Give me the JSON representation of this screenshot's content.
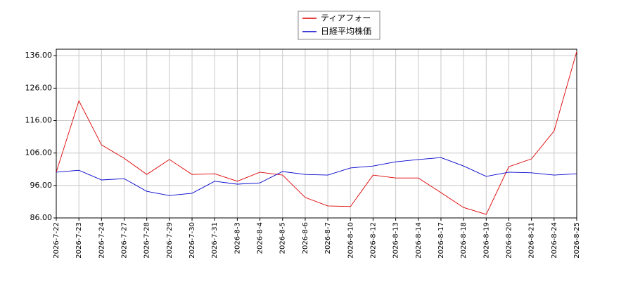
{
  "chart_data": {
    "type": "line",
    "categories": [
      "2026-7-22",
      "2026-7-23",
      "2026-7-24",
      "2026-7-27",
      "2026-7-28",
      "2026-7-29",
      "2026-7-30",
      "2026-7-31",
      "2026-8-3",
      "2026-8-4",
      "2026-8-5",
      "2026-8-6",
      "2026-8-7",
      "2026-8-10",
      "2026-8-12",
      "2026-8-13",
      "2026-8-14",
      "2026-8-17",
      "2026-8-18",
      "2026-8-19",
      "2026-8-20",
      "2026-8-21",
      "2026-8-24",
      "2026-8-25"
    ],
    "series": [
      {
        "name": "ティアフォー",
        "color": "#dd0000",
        "values": [
          100.1,
          122.1,
          108.5,
          104.4,
          99.4,
          104.0,
          99.4,
          99.6,
          97.3,
          100.1,
          99.2,
          92.3,
          89.7,
          89.5,
          99.2,
          98.3,
          98.3,
          93.8,
          89.2,
          87.1,
          101.8,
          104.2,
          112.8,
          137.3
        ]
      },
      {
        "name": "日経平均株価",
        "color": "#0000cc",
        "values": [
          100.1,
          100.7,
          97.7,
          98.1,
          94.2,
          92.9,
          93.6,
          97.3,
          96.4,
          96.8,
          100.3,
          99.4,
          99.2,
          101.4,
          102.0,
          103.3,
          104.0,
          104.6,
          102.0,
          98.8,
          100.1,
          99.9,
          99.2,
          99.6
        ]
      }
    ],
    "ylim": [
      86,
      138
    ],
    "yticks": [
      {
        "value": 86,
        "label": "86.00"
      },
      {
        "value": 96,
        "label": "96.00"
      },
      {
        "value": 106,
        "label": "106.00"
      },
      {
        "value": 116,
        "label": "116.00"
      },
      {
        "value": 126,
        "label": "126.00"
      },
      {
        "value": 136,
        "label": "136.00"
      }
    ],
    "grid": true,
    "legend": "upper center"
  }
}
